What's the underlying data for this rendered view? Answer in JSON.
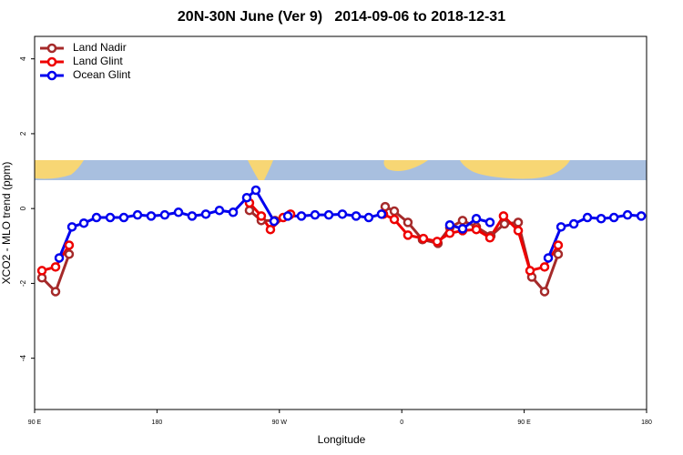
{
  "chart_data": {
    "type": "line",
    "title": "20N-30N June (Ver 9)   2014-09-06 to 2018-12-31",
    "x_label": "Longitude",
    "y_label": "XCO2 - MLO trend (ppm)",
    "xlim": [
      90,
      540
    ],
    "ylim": [
      -5.37,
      4.6
    ],
    "xticks": [
      {
        "value": 90,
        "label": "90 E"
      },
      180,
      {
        "value": 270,
        "label": "90 W"
      },
      {
        "value": 360,
        "label": "0"
      },
      {
        "value": 450,
        "label": "90 E"
      },
      {
        "value": 540,
        "label": "180"
      }
    ],
    "yticks": [
      -4,
      -2,
      0,
      2,
      4
    ],
    "legend": "top-left",
    "series": [
      {
        "name": "Land Nadir",
        "color": "#a52a2a",
        "x": [
          95.4,
          105.4,
          115.4,
          null,
          248,
          256.7,
          266.8,
          277.5,
          null,
          347.8,
          354.5,
          364.5,
          375.2,
          386.6,
          395.3,
          404.7,
          414.8,
          425.5,
          435.5,
          445.6,
          455.6,
          465,
          475
        ],
        "values": [
          -1.85,
          -2.22,
          -1.22,
          null,
          -0.05,
          -0.32,
          -0.32,
          -0.17,
          null,
          0.05,
          -0.07,
          -0.37,
          -0.83,
          -0.93,
          -0.51,
          -0.32,
          -0.49,
          -0.73,
          -0.41,
          -0.37,
          -1.83,
          -2.22,
          -1.22
        ]
      },
      {
        "name": "Land Glint",
        "color": "#ee0000",
        "x": [
          95.4,
          105.4,
          115.4,
          null,
          248,
          256.7,
          263.4,
          272.8,
          278.2,
          null,
          346.5,
          354.5,
          364.5,
          375.9,
          386,
          395.3,
          404.7,
          414.8,
          424.8,
          434.8,
          445.6,
          454.3,
          465,
          475
        ],
        "values": [
          -1.66,
          -1.56,
          -0.98,
          null,
          0.15,
          -0.2,
          -0.56,
          -0.24,
          -0.15,
          null,
          -0.15,
          -0.29,
          -0.71,
          -0.8,
          -0.88,
          -0.66,
          -0.59,
          -0.56,
          -0.78,
          -0.2,
          -0.59,
          -1.66,
          -1.56,
          -0.98
        ]
      },
      {
        "name": "Ocean Glint",
        "color": "#0000ee",
        "x": [
          108.1,
          117.5,
          126.2,
          135.5,
          145.6,
          155.6,
          165.7,
          175.7,
          185.7,
          195.8,
          205.8,
          215.9,
          225.9,
          236,
          246,
          252.7,
          266.1,
          276.2,
          286.2,
          296.2,
          306.3,
          316.3,
          326.4,
          335.7,
          345.1,
          null,
          395.3,
          404.7,
          414.8,
          424.8,
          null,
          467.7,
          477.1,
          486.5,
          496.5,
          506.6,
          516,
          526,
          536.1
        ],
        "values": [
          -1.32,
          -0.49,
          -0.39,
          -0.24,
          -0.24,
          -0.24,
          -0.17,
          -0.2,
          -0.17,
          -0.1,
          -0.2,
          -0.15,
          -0.05,
          -0.1,
          0.29,
          0.49,
          -0.34,
          -0.2,
          -0.2,
          -0.17,
          -0.17,
          -0.15,
          -0.2,
          -0.24,
          -0.15,
          null,
          -0.44,
          -0.54,
          -0.27,
          -0.37,
          null,
          -1.32,
          -0.49,
          -0.41,
          -0.24,
          -0.27,
          -0.24,
          -0.17,
          -0.2
        ]
      }
    ]
  }
}
